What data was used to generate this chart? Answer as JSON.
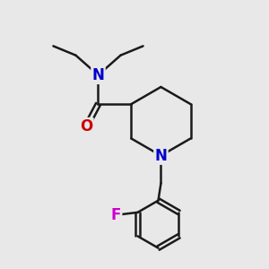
{
  "background_color": "#e8e8e8",
  "bond_color": "#1a1a1a",
  "N_color": "#0000cc",
  "O_color": "#cc0000",
  "F_color": "#cc00cc",
  "line_width": 1.8,
  "font_size": 12,
  "figsize": [
    3.0,
    3.0
  ],
  "dpi": 100,
  "xlim": [
    0,
    10
  ],
  "ylim": [
    0,
    10
  ]
}
